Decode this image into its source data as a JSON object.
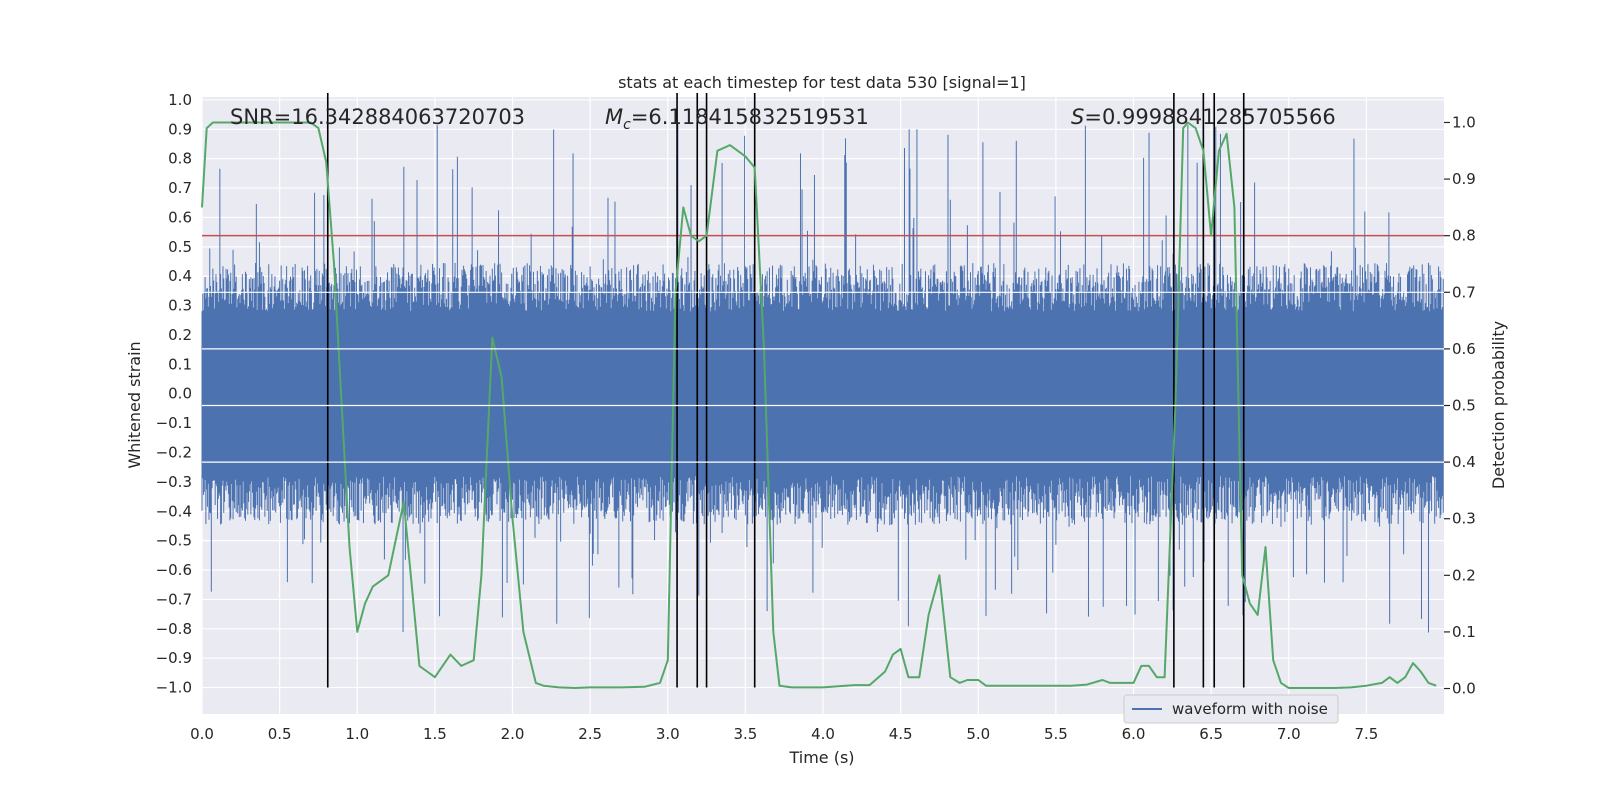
{
  "chart_data": {
    "type": "line",
    "title": "stats at each timestep for test data 530 [signal=1]",
    "xlabel": "Time (s)",
    "ylabel": "Whitened strain",
    "ylabel_right": "Detection probability",
    "xlim": [
      0.0,
      8.0
    ],
    "ylim": [
      -1.09,
      1.01
    ],
    "ylim_right": [
      -0.045,
      1.045
    ],
    "x_ticks": [
      0.0,
      0.5,
      1.0,
      1.5,
      2.0,
      2.5,
      3.0,
      3.5,
      4.0,
      4.5,
      5.0,
      5.5,
      6.0,
      6.5,
      7.0,
      7.5
    ],
    "x_tick_labels": [
      "0.0",
      "0.5",
      "1.0",
      "1.5",
      "2.0",
      "2.5",
      "3.0",
      "3.5",
      "4.0",
      "4.5",
      "5.0",
      "5.5",
      "6.0",
      "6.5",
      "7.0",
      "7.5"
    ],
    "y_ticks": [
      1.0,
      0.9,
      0.8,
      0.7,
      0.6,
      0.5,
      0.4,
      0.3,
      0.2,
      0.1,
      0.0,
      -0.1,
      -0.2,
      -0.3,
      -0.4,
      -0.5,
      -0.6,
      -0.7,
      -0.8,
      -0.9,
      -1.0
    ],
    "y_tick_labels": [
      "1.0",
      "0.9",
      "0.8",
      "0.7",
      "0.6",
      "0.5",
      "0.4",
      "0.3",
      "0.2",
      "0.1",
      "0.0",
      "−0.1",
      "−0.2",
      "−0.3",
      "−0.4",
      "−0.5",
      "−0.6",
      "−0.7",
      "−0.8",
      "−0.9",
      "−1.0"
    ],
    "y2_ticks": [
      1.0,
      0.9,
      0.8,
      0.7,
      0.6,
      0.5,
      0.4,
      0.3,
      0.2,
      0.1,
      0.0
    ],
    "y2_tick_labels": [
      "1.0",
      "0.9",
      "0.8",
      "0.7",
      "0.6",
      "0.5",
      "0.4",
      "0.3",
      "0.2",
      "0.1",
      "0.0"
    ],
    "annotations": {
      "snr": "SNR=16.342884063720703",
      "mc": "=6.118415832519531",
      "mc_symbol": "M",
      "mc_sub": "c",
      "s": "=0.9998841285705566",
      "s_symbol": "S"
    },
    "threshold_right": 0.8,
    "vertical_lines_x": [
      0.81,
      3.06,
      3.19,
      3.25,
      3.56,
      6.26,
      6.45,
      6.52,
      6.71
    ],
    "legend": {
      "label": "waveform with noise",
      "position": "lower-right"
    },
    "waveform": {
      "name": "waveform with noise",
      "color": "#4c72b0",
      "seed": 530,
      "samples": 1600,
      "typical_peak": 0.33,
      "max_abs": 0.92
    },
    "probability_series": {
      "name": "detection probability",
      "color": "#55a868",
      "x": [
        0.0,
        0.03,
        0.07,
        0.11,
        0.2,
        0.4,
        0.6,
        0.7,
        0.75,
        0.8,
        0.85,
        0.9,
        0.95,
        1.0,
        1.05,
        1.1,
        1.2,
        1.3,
        1.4,
        1.45,
        1.5,
        1.6,
        1.67,
        1.75,
        1.8,
        1.87,
        1.93,
        2.0,
        2.07,
        2.15,
        2.2,
        2.3,
        2.4,
        2.5,
        2.6,
        2.7,
        2.85,
        2.95,
        3.0,
        3.05,
        3.1,
        3.15,
        3.2,
        3.25,
        3.32,
        3.4,
        3.5,
        3.56,
        3.62,
        3.68,
        3.72,
        3.8,
        3.9,
        4.0,
        4.1,
        4.2,
        4.3,
        4.4,
        4.45,
        4.5,
        4.55,
        4.62,
        4.68,
        4.75,
        4.82,
        4.88,
        4.93,
        5.0,
        5.05,
        5.1,
        5.2,
        5.3,
        5.4,
        5.5,
        5.6,
        5.7,
        5.8,
        5.85,
        5.9,
        6.0,
        6.05,
        6.1,
        6.15,
        6.2,
        6.27,
        6.32,
        6.35,
        6.4,
        6.45,
        6.5,
        6.55,
        6.6,
        6.65,
        6.7,
        6.75,
        6.8,
        6.85,
        6.9,
        6.95,
        7.0,
        7.1,
        7.2,
        7.3,
        7.4,
        7.5,
        7.6,
        7.65,
        7.7,
        7.75,
        7.8,
        7.85,
        7.9,
        7.95
      ],
      "values": [
        0.85,
        0.99,
        1.0,
        1.0,
        1.0,
        1.0,
        1.0,
        1.0,
        0.99,
        0.93,
        0.75,
        0.5,
        0.25,
        0.1,
        0.15,
        0.18,
        0.2,
        0.33,
        0.04,
        0.03,
        0.02,
        0.06,
        0.04,
        0.05,
        0.2,
        0.62,
        0.55,
        0.3,
        0.1,
        0.01,
        0.005,
        0.002,
        0.001,
        0.002,
        0.002,
        0.002,
        0.003,
        0.01,
        0.05,
        0.7,
        0.85,
        0.8,
        0.79,
        0.8,
        0.95,
        0.96,
        0.94,
        0.92,
        0.6,
        0.1,
        0.005,
        0.002,
        0.002,
        0.002,
        0.004,
        0.006,
        0.006,
        0.03,
        0.06,
        0.07,
        0.02,
        0.02,
        0.13,
        0.2,
        0.02,
        0.01,
        0.015,
        0.015,
        0.005,
        0.005,
        0.005,
        0.005,
        0.005,
        0.005,
        0.005,
        0.007,
        0.015,
        0.01,
        0.01,
        0.01,
        0.04,
        0.04,
        0.02,
        0.02,
        0.5,
        0.99,
        1.0,
        0.99,
        0.95,
        0.8,
        0.95,
        0.98,
        0.85,
        0.2,
        0.15,
        0.13,
        0.25,
        0.05,
        0.01,
        0.001,
        0.001,
        0.001,
        0.001,
        0.002,
        0.005,
        0.01,
        0.02,
        0.01,
        0.02,
        0.045,
        0.03,
        0.01,
        0.005
      ]
    },
    "threshold_color": "#c44e52"
  }
}
